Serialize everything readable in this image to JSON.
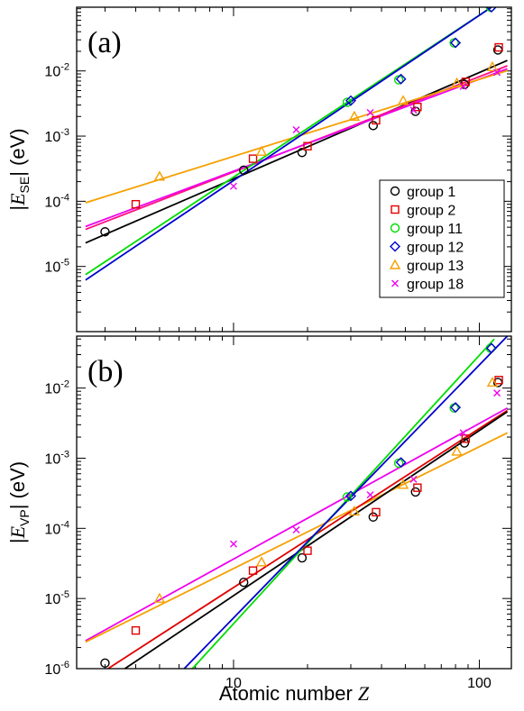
{
  "colors": {
    "group 1": "#000000",
    "group 2": "#e00000",
    "group 11": "#00dd00",
    "group 12": "#0000cc",
    "group 13": "#f5a000",
    "group 18": "#ee00ee",
    "fit_pink_se": "#ff1080",
    "fit_teal": "#008080"
  },
  "x_axis": {
    "label_prefix": "Atomic number ",
    "label_var": "Z",
    "scale": "log",
    "xlim": [
      2.3,
      135
    ],
    "ticks": [
      {
        "value": 10,
        "label": "10"
      },
      {
        "value": 100,
        "label": "100"
      }
    ]
  },
  "legend": {
    "placement": "bottom-right of panel (a)",
    "entries": [
      {
        "series": "group 1",
        "label": "group 1",
        "marker": "circle"
      },
      {
        "series": "group 2",
        "label": "group 2",
        "marker": "square"
      },
      {
        "series": "group 11",
        "label": "group 11",
        "marker": "circle"
      },
      {
        "series": "group 12",
        "label": "group 12",
        "marker": "diamond"
      },
      {
        "series": "group 13",
        "label": "group 13",
        "marker": "triangle"
      },
      {
        "series": "group 18",
        "label": "group 18",
        "marker": "x"
      }
    ]
  },
  "chart_data": [
    {
      "type": "scatter",
      "panel_tag": "(a)",
      "ylabel": {
        "pre": "|",
        "var": "E",
        "sub": "SE",
        "post": "| (eV)"
      },
      "yscale": "log",
      "ylim": [
        1e-06,
        0.095
      ],
      "yticks": [
        {
          "value": 1e-05,
          "base": "10",
          "exp": "-5"
        },
        {
          "value": 0.0001,
          "base": "10",
          "exp": "-4"
        },
        {
          "value": 0.001,
          "base": "10",
          "exp": "-3"
        },
        {
          "value": 0.01,
          "base": "10",
          "exp": "-2"
        }
      ],
      "series": [
        {
          "name": "group 1",
          "marker": "circle",
          "points": [
            [
              3,
              3.4e-05
            ],
            [
              11,
              0.0003
            ],
            [
              19,
              0.00056
            ],
            [
              37,
              0.00145
            ],
            [
              55,
              0.0024
            ],
            [
              87,
              0.0062
            ],
            [
              119,
              0.021
            ]
          ]
        },
        {
          "name": "group 2",
          "marker": "square",
          "points": [
            [
              4,
              9e-05
            ],
            [
              12,
              0.00045
            ],
            [
              20,
              0.0007
            ],
            [
              38,
              0.00175
            ],
            [
              56,
              0.0028
            ],
            [
              88,
              0.0068
            ],
            [
              120,
              0.023
            ]
          ]
        },
        {
          "name": "group 11",
          "marker": "circle",
          "points": [
            [
              29,
              0.0033
            ],
            [
              47,
              0.0073
            ],
            [
              79,
              0.027
            ],
            [
              111,
              0.095
            ]
          ]
        },
        {
          "name": "group 12",
          "marker": "diamond",
          "points": [
            [
              30,
              0.0035
            ],
            [
              48,
              0.0075
            ],
            [
              80,
              0.027
            ],
            [
              112,
              0.095
            ]
          ]
        },
        {
          "name": "group 13",
          "marker": "triangle",
          "points": [
            [
              5,
              0.00024
            ],
            [
              13,
              0.00058
            ],
            [
              31,
              0.002
            ],
            [
              49,
              0.0035
            ],
            [
              81,
              0.0065
            ],
            [
              113,
              0.0115
            ]
          ]
        },
        {
          "name": "group 18",
          "marker": "x",
          "points": [
            [
              10,
              0.00017
            ],
            [
              18,
              0.00125
            ],
            [
              36,
              0.0023
            ],
            [
              54,
              0.0025
            ],
            [
              86,
              0.0058
            ],
            [
              118,
              0.0095
            ]
          ]
        }
      ],
      "fits": [
        {
          "color_key": "group 1",
          "from": [
            2.5,
            2.3e-05
          ],
          "to": [
            130,
            0.0145
          ]
        },
        {
          "color_key": "fit_pink_se",
          "from": [
            2.5,
            3.7e-05
          ],
          "to": [
            130,
            0.012
          ]
        },
        {
          "color_key": "group 18",
          "from": [
            2.5,
            4.1e-05
          ],
          "to": [
            130,
            0.0108
          ]
        },
        {
          "color_key": "group 13",
          "from": [
            2.5,
            9.5e-05
          ],
          "to": [
            130,
            0.0101
          ]
        },
        {
          "color_key": "group 11",
          "from": [
            2.5,
            7.5e-06
          ],
          "to": [
            112,
            0.095
          ]
        },
        {
          "color_key": "group 12",
          "from": [
            2.5,
            6.2e-06
          ],
          "to": [
            112,
            0.095
          ]
        }
      ]
    },
    {
      "type": "scatter",
      "panel_tag": "(b)",
      "ylabel": {
        "pre": "|",
        "var": "E",
        "sub": "VP",
        "post": "| (eV)"
      },
      "yscale": "log",
      "ylim": [
        1e-06,
        0.055
      ],
      "yticks": [
        {
          "value": 1e-06,
          "base": "10",
          "exp": "-6"
        },
        {
          "value": 1e-05,
          "base": "10",
          "exp": "-5"
        },
        {
          "value": 0.0001,
          "base": "10",
          "exp": "-4"
        },
        {
          "value": 0.001,
          "base": "10",
          "exp": "-3"
        },
        {
          "value": 0.01,
          "base": "10",
          "exp": "-2"
        }
      ],
      "series": [
        {
          "name": "group 1",
          "marker": "circle",
          "points": [
            [
              3,
              1.2e-06
            ],
            [
              11,
              1.7e-05
            ],
            [
              19,
              3.8e-05
            ],
            [
              37,
              0.000145
            ],
            [
              55,
              0.00033
            ],
            [
              87,
              0.00165
            ],
            [
              119,
              0.012
            ]
          ]
        },
        {
          "name": "group 2",
          "marker": "square",
          "points": [
            [
              4,
              3.5e-06
            ],
            [
              12,
              2.5e-05
            ],
            [
              20,
              4.8e-05
            ],
            [
              38,
              0.00017
            ],
            [
              56,
              0.00038
            ],
            [
              88,
              0.0019
            ],
            [
              120,
              0.013
            ]
          ]
        },
        {
          "name": "group 11",
          "marker": "circle",
          "points": [
            [
              29,
              0.00028
            ],
            [
              47,
              0.00085
            ],
            [
              79,
              0.0052
            ],
            [
              111,
              0.037
            ]
          ]
        },
        {
          "name": "group 12",
          "marker": "diamond",
          "points": [
            [
              30,
              0.00029
            ],
            [
              48,
              0.00087
            ],
            [
              80,
              0.0053
            ],
            [
              112,
              0.037
            ]
          ]
        },
        {
          "name": "group 13",
          "marker": "triangle",
          "points": [
            [
              5,
              1e-05
            ],
            [
              13,
              3.3e-05
            ],
            [
              31,
              0.000175
            ],
            [
              49,
              0.00042
            ],
            [
              81,
              0.00125
            ],
            [
              113,
              0.012
            ]
          ]
        },
        {
          "name": "group 18",
          "marker": "x",
          "points": [
            [
              10,
              6e-05
            ],
            [
              18,
              9.5e-05
            ],
            [
              36,
              0.0003
            ],
            [
              54,
              0.0005
            ],
            [
              86,
              0.0023
            ],
            [
              118,
              0.0085
            ]
          ]
        }
      ],
      "fits": [
        {
          "color_key": "group 18",
          "from": [
            2.5,
            2.5e-06
          ],
          "to": [
            130,
            0.0052
          ]
        },
        {
          "color_key": "group 13",
          "from": [
            2.5,
            2.4e-06
          ],
          "to": [
            130,
            0.0023
          ]
        },
        {
          "color_key": "group 2",
          "from": [
            2.5,
            6.2e-07
          ],
          "to": [
            130,
            0.0048
          ]
        },
        {
          "color_key": "group 1",
          "from": [
            2.5,
            4.2e-07
          ],
          "to": [
            130,
            0.0046
          ]
        },
        {
          "color_key": "group 11",
          "from": [
            6.8,
            1e-06
          ],
          "to": [
            115,
            0.05
          ]
        },
        {
          "color_key": "group 12",
          "from": [
            6.3,
            1e-06
          ],
          "to": [
            130,
            0.055
          ]
        }
      ]
    }
  ]
}
